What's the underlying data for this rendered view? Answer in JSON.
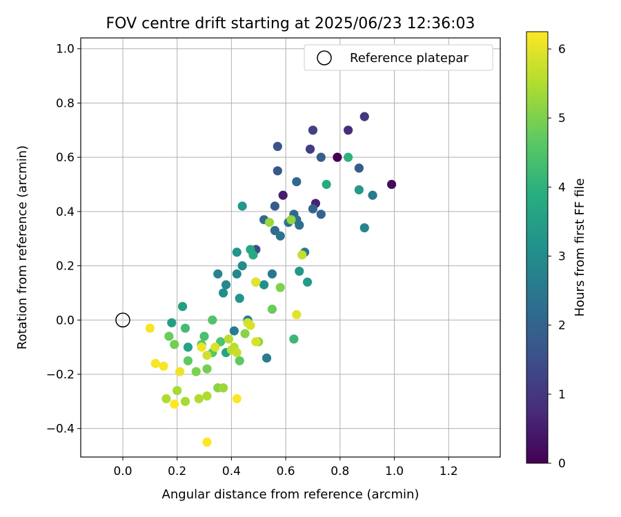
{
  "chart_data": {
    "type": "scatter",
    "title": "FOV centre drift starting at 2025/06/23 12:36:03",
    "xlabel": "Angular distance from reference (arcmin)",
    "ylabel": "Rotation from reference (arcmin)",
    "xlim": [
      -0.155,
      1.39
    ],
    "ylim": [
      -0.505,
      1.04
    ],
    "xticks": [
      0.0,
      0.2,
      0.4,
      0.6,
      0.8,
      1.0,
      1.2
    ],
    "yticks": [
      -0.4,
      -0.2,
      0.0,
      0.2,
      0.4,
      0.6,
      0.8,
      1.0
    ],
    "xtick_labels": [
      "0.0",
      "0.2",
      "0.4",
      "0.6",
      "0.8",
      "1.0",
      "1.2"
    ],
    "ytick_labels": [
      "−0.4",
      "−0.2",
      "0.0",
      "0.2",
      "0.4",
      "0.6",
      "0.8",
      "1.0"
    ],
    "grid": true,
    "legend": {
      "label": "Reference platepar",
      "position": "top-right"
    },
    "reference_point": {
      "x": 0.0,
      "y": 0.0
    },
    "colorbar": {
      "label": "Hours from first FF file",
      "min": 0,
      "max": 6.25,
      "colormap": "viridis",
      "ticks": [
        0,
        1,
        2,
        3,
        4,
        5,
        6
      ],
      "tick_labels": [
        "0",
        "1",
        "2",
        "3",
        "4",
        "5",
        "6"
      ]
    },
    "points": [
      {
        "x": 0.79,
        "y": 0.6,
        "c": 0.0
      },
      {
        "x": 0.99,
        "y": 0.5,
        "c": 0.2
      },
      {
        "x": 0.59,
        "y": 0.46,
        "c": 0.5
      },
      {
        "x": 0.71,
        "y": 0.43,
        "c": 0.6
      },
      {
        "x": 0.83,
        "y": 0.7,
        "c": 0.8
      },
      {
        "x": 0.89,
        "y": 0.75,
        "c": 1.0
      },
      {
        "x": 0.69,
        "y": 0.63,
        "c": 1.1
      },
      {
        "x": 0.7,
        "y": 0.7,
        "c": 1.2
      },
      {
        "x": 0.49,
        "y": 0.26,
        "c": 1.4
      },
      {
        "x": 0.57,
        "y": 0.64,
        "c": 1.6
      },
      {
        "x": 0.57,
        "y": 0.55,
        "c": 1.7
      },
      {
        "x": 0.87,
        "y": 0.56,
        "c": 1.8
      },
      {
        "x": 0.56,
        "y": 0.42,
        "c": 1.8
      },
      {
        "x": 0.73,
        "y": 0.6,
        "c": 1.9
      },
      {
        "x": 0.7,
        "y": 0.41,
        "c": 2.0
      },
      {
        "x": 0.73,
        "y": 0.39,
        "c": 2.0
      },
      {
        "x": 0.64,
        "y": 0.51,
        "c": 2.1
      },
      {
        "x": 0.63,
        "y": 0.39,
        "c": 2.1
      },
      {
        "x": 0.52,
        "y": 0.37,
        "c": 2.2
      },
      {
        "x": 0.56,
        "y": 0.33,
        "c": 2.2
      },
      {
        "x": 0.65,
        "y": 0.35,
        "c": 2.3
      },
      {
        "x": 0.64,
        "y": 0.37,
        "c": 2.3
      },
      {
        "x": 0.61,
        "y": 0.36,
        "c": 2.4
      },
      {
        "x": 0.58,
        "y": 0.31,
        "c": 2.4
      },
      {
        "x": 0.67,
        "y": 0.25,
        "c": 2.5
      },
      {
        "x": 0.55,
        "y": 0.17,
        "c": 2.5
      },
      {
        "x": 0.92,
        "y": 0.46,
        "c": 2.6
      },
      {
        "x": 0.53,
        "y": -0.14,
        "c": 2.6
      },
      {
        "x": 0.41,
        "y": -0.04,
        "c": 2.6
      },
      {
        "x": 0.46,
        "y": 0.0,
        "c": 2.7
      },
      {
        "x": 0.89,
        "y": 0.34,
        "c": 2.8
      },
      {
        "x": 0.35,
        "y": 0.17,
        "c": 2.8
      },
      {
        "x": 0.38,
        "y": 0.13,
        "c": 2.9
      },
      {
        "x": 0.42,
        "y": 0.17,
        "c": 2.9
      },
      {
        "x": 0.44,
        "y": 0.2,
        "c": 3.0
      },
      {
        "x": 0.49,
        "y": 0.14,
        "c": 3.0
      },
      {
        "x": 0.52,
        "y": 0.13,
        "c": 3.1
      },
      {
        "x": 0.37,
        "y": 0.1,
        "c": 3.1
      },
      {
        "x": 0.43,
        "y": 0.08,
        "c": 3.2
      },
      {
        "x": 0.42,
        "y": 0.25,
        "c": 3.2
      },
      {
        "x": 0.44,
        "y": 0.42,
        "c": 3.3
      },
      {
        "x": 0.65,
        "y": 0.18,
        "c": 3.3
      },
      {
        "x": 0.68,
        "y": 0.14,
        "c": 3.4
      },
      {
        "x": 0.87,
        "y": 0.48,
        "c": 3.4
      },
      {
        "x": 0.18,
        "y": -0.01,
        "c": 3.5
      },
      {
        "x": 0.22,
        "y": 0.05,
        "c": 3.5
      },
      {
        "x": 0.38,
        "y": -0.12,
        "c": 3.6
      },
      {
        "x": 0.24,
        "y": -0.1,
        "c": 3.6
      },
      {
        "x": 0.47,
        "y": 0.26,
        "c": 3.7
      },
      {
        "x": 0.48,
        "y": 0.24,
        "c": 3.8
      },
      {
        "x": 0.75,
        "y": 0.5,
        "c": 3.8
      },
      {
        "x": 0.83,
        "y": 0.6,
        "c": 4.0
      },
      {
        "x": 0.63,
        "y": -0.07,
        "c": 4.2
      },
      {
        "x": 0.23,
        "y": -0.03,
        "c": 4.3
      },
      {
        "x": 0.3,
        "y": -0.06,
        "c": 4.4
      },
      {
        "x": 0.33,
        "y": 0.0,
        "c": 4.5
      },
      {
        "x": 0.36,
        "y": -0.08,
        "c": 4.5
      },
      {
        "x": 0.29,
        "y": -0.09,
        "c": 4.6
      },
      {
        "x": 0.33,
        "y": -0.12,
        "c": 4.6
      },
      {
        "x": 0.43,
        "y": -0.15,
        "c": 4.7
      },
      {
        "x": 0.24,
        "y": -0.15,
        "c": 4.7
      },
      {
        "x": 0.55,
        "y": 0.04,
        "c": 4.8
      },
      {
        "x": 0.17,
        "y": -0.06,
        "c": 4.8
      },
      {
        "x": 0.19,
        "y": -0.09,
        "c": 4.9
      },
      {
        "x": 0.31,
        "y": -0.18,
        "c": 4.9
      },
      {
        "x": 0.58,
        "y": 0.12,
        "c": 5.0
      },
      {
        "x": 0.27,
        "y": -0.19,
        "c": 5.0
      },
      {
        "x": 0.35,
        "y": -0.25,
        "c": 5.1
      },
      {
        "x": 0.45,
        "y": -0.05,
        "c": 5.1
      },
      {
        "x": 0.62,
        "y": 0.37,
        "c": 5.2
      },
      {
        "x": 0.5,
        "y": -0.08,
        "c": 5.2
      },
      {
        "x": 0.54,
        "y": 0.36,
        "c": 5.3
      },
      {
        "x": 0.37,
        "y": -0.25,
        "c": 5.3
      },
      {
        "x": 0.2,
        "y": -0.26,
        "c": 5.4
      },
      {
        "x": 0.23,
        "y": -0.3,
        "c": 5.4
      },
      {
        "x": 0.28,
        "y": -0.29,
        "c": 5.5
      },
      {
        "x": 0.31,
        "y": -0.28,
        "c": 5.5
      },
      {
        "x": 0.16,
        "y": -0.29,
        "c": 5.5
      },
      {
        "x": 0.41,
        "y": -0.1,
        "c": 5.6
      },
      {
        "x": 0.39,
        "y": -0.07,
        "c": 5.6
      },
      {
        "x": 0.4,
        "y": -0.11,
        "c": 5.6
      },
      {
        "x": 0.42,
        "y": -0.12,
        "c": 5.7
      },
      {
        "x": 0.66,
        "y": 0.24,
        "c": 5.7
      },
      {
        "x": 0.31,
        "y": -0.13,
        "c": 5.8
      },
      {
        "x": 0.46,
        "y": -0.01,
        "c": 5.8
      },
      {
        "x": 0.47,
        "y": -0.02,
        "c": 5.9
      },
      {
        "x": 0.49,
        "y": -0.08,
        "c": 5.9
      },
      {
        "x": 0.34,
        "y": -0.1,
        "c": 5.9
      },
      {
        "x": 0.49,
        "y": 0.14,
        "c": 6.0
      },
      {
        "x": 0.64,
        "y": 0.02,
        "c": 6.0
      },
      {
        "x": 0.29,
        "y": -0.1,
        "c": 6.1
      },
      {
        "x": 0.21,
        "y": -0.19,
        "c": 6.1
      },
      {
        "x": 0.1,
        "y": -0.03,
        "c": 6.2
      },
      {
        "x": 0.12,
        "y": -0.16,
        "c": 6.2
      },
      {
        "x": 0.15,
        "y": -0.17,
        "c": 6.2
      },
      {
        "x": 0.19,
        "y": -0.31,
        "c": 6.25
      },
      {
        "x": 0.42,
        "y": -0.29,
        "c": 6.25
      },
      {
        "x": 0.31,
        "y": -0.45,
        "c": 6.25
      }
    ]
  }
}
